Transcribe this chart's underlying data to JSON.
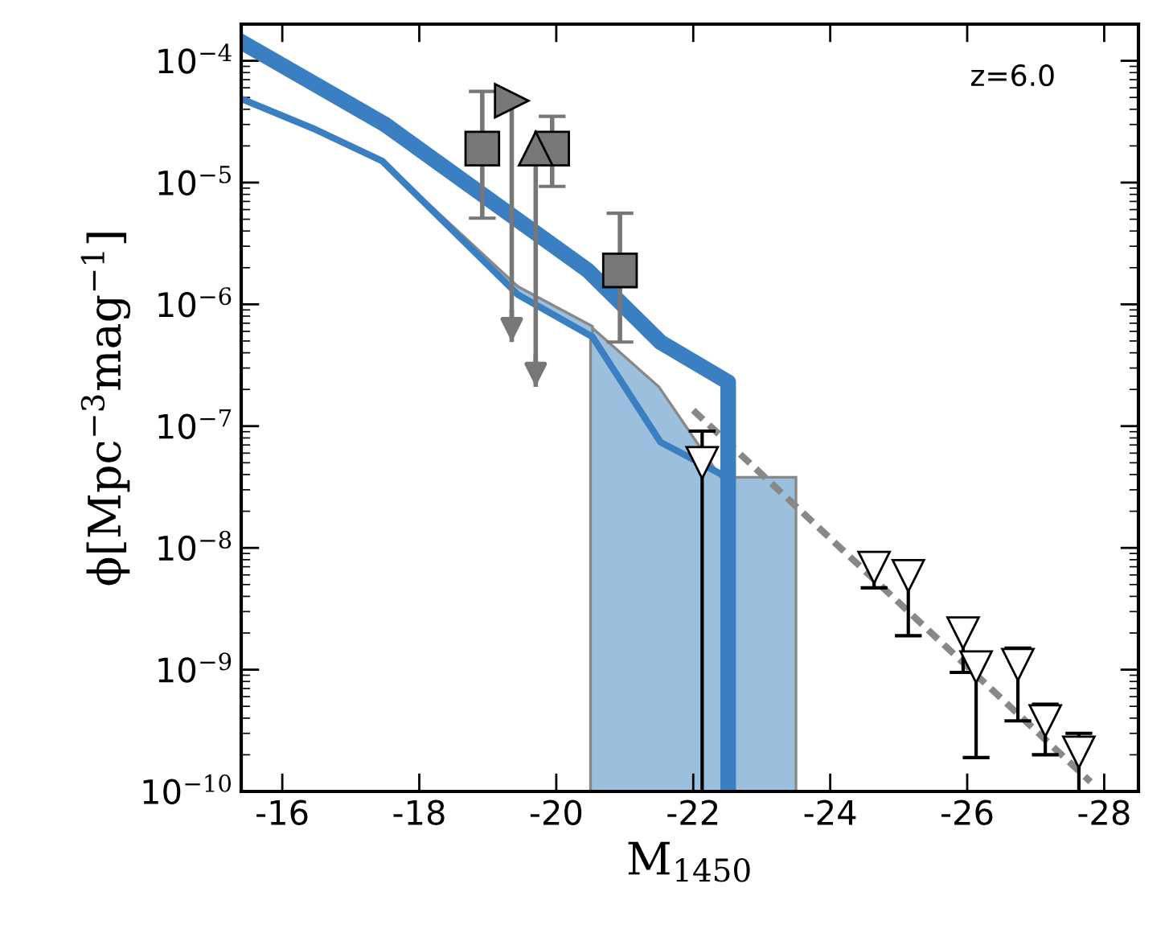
{
  "chart_data": {
    "type": "line",
    "xlabel": "M$_{1450}$",
    "ylabel": "ϕ[Mpc$^{−3}$mag$^{−1}$]",
    "log": "y",
    "xlim": [
      -15.4,
      -28.5
    ],
    "xticks": [
      {
        "value": -16,
        "label": "-16"
      },
      {
        "value": -18,
        "label": "-18"
      },
      {
        "value": -20,
        "label": "-20"
      },
      {
        "value": -22,
        "label": "-22"
      },
      {
        "value": -24,
        "label": "-24"
      },
      {
        "value": -26,
        "label": "-26"
      },
      {
        "value": -28,
        "label": "-28"
      }
    ],
    "ylim": [
      1e-10,
      0.0002
    ],
    "yticks": [
      {
        "value": 1e-10,
        "label": "10$^{−10}$"
      },
      {
        "value": 1e-09,
        "label": "10$^{−9}$"
      },
      {
        "value": 1e-08,
        "label": "10$^{−8}$"
      },
      {
        "value": 1e-07,
        "label": "10$^{−7}$"
      },
      {
        "value": 1e-06,
        "label": "10$^{−6}$"
      },
      {
        "value": 1e-05,
        "label": "10$^{−5}$"
      },
      {
        "value": 0.0001,
        "label": "10$^{−4}$"
      }
    ],
    "grid": false,
    "annotations": [
      "z=6.0"
    ],
    "series": [
      {
        "type": "area",
        "color": "#9bbfdd",
        "x": [
          -20.5,
          -21.5,
          -22.4,
          -23.5
        ],
        "values": [
          6.6e-07,
          2.1e-07,
          3.8e-08,
          3.8e-08
        ]
      },
      {
        "type": "line",
        "color": "#888888",
        "line_style": "dashed",
        "marker": "none",
        "x": [
          -22.0,
          -27.8
        ],
        "values": [
          1.35e-07,
          1.2e-10
        ]
      },
      {
        "color": "#3a7fc1",
        "line_style": "solid",
        "marker": "none",
        "x": [
          -15.43,
          -16.44,
          -17.46,
          -19.44,
          -20.53,
          -21.52,
          -22.42
        ],
        "values": [
          4.8e-05,
          2.8e-05,
          1.5e-05,
          1.2e-06,
          5.4e-07,
          7.4e-08,
          4e-08
        ],
        "lower": [
          null,
          null,
          1.5e-05,
          1.2e-06,
          5.4e-07,
          null,
          null
        ],
        "upper": [
          null,
          null,
          1.5e-05,
          1.4e-06,
          6.6e-07,
          null,
          null
        ]
      },
      {
        "color": "#3a7fc1",
        "line_style": "solid",
        "marker": "none",
        "x": [
          -15.43,
          -17.5,
          -20.46,
          -21.52,
          -22.51,
          -22.51
        ],
        "values": [
          0.00014,
          3e-05,
          1.9e-06,
          4.9e-07,
          2.3e-07,
          1e-10
        ]
      },
      {
        "type": "scatter",
        "color": "#777777",
        "marker": "square",
        "x": [
          -18.92,
          -19.94,
          -20.93
        ],
        "values": [
          1.9e-05,
          1.9e-05,
          1.9e-06
        ],
        "errors": [
          [
            5.1e-06,
            5.6e-05
          ],
          [
            9.3e-06,
            3.5e-05
          ],
          [
            4.9e-07,
            5.6e-06
          ]
        ]
      },
      {
        "type": "scatter",
        "color": "#777777",
        "marker": "triangle-right",
        "x": [
          -19.35
        ],
        "values": [
          4.7e-05
        ],
        "errors": [
          [
            4.9e-07,
            4.7e-05
          ]
        ]
      },
      {
        "type": "scatter",
        "color": "#777777",
        "marker": "triangle",
        "x": [
          -19.7
        ],
        "values": [
          1.9e-05
        ],
        "errors": [
          [
            2.1e-07,
            1.9e-05
          ]
        ]
      },
      {
        "type": "scatter",
        "color": "#000000",
        "marker": "triangle-down",
        "x": [
          -22.13,
          -24.64,
          -25.14,
          -25.94,
          -26.13,
          -26.74,
          -27.14,
          -27.63
        ],
        "values": [
          5e-08,
          6.9e-09,
          5.9e-09,
          2e-09,
          1.05e-09,
          1.1e-09,
          3.8e-10,
          2.1e-10
        ],
        "errors": [
          [
            1e-10,
            9.1e-08
          ],
          [
            4.7e-09,
            8.5e-09
          ],
          [
            1.9e-09,
            7.6e-09
          ],
          [
            9.5e-10,
            2.5e-09
          ],
          [
            1.9e-10,
            1.35e-09
          ],
          [
            3.8e-10,
            1.5e-09
          ],
          [
            2e-10,
            5.2e-10
          ],
          [
            1e-10,
            3e-10
          ]
        ]
      }
    ]
  }
}
